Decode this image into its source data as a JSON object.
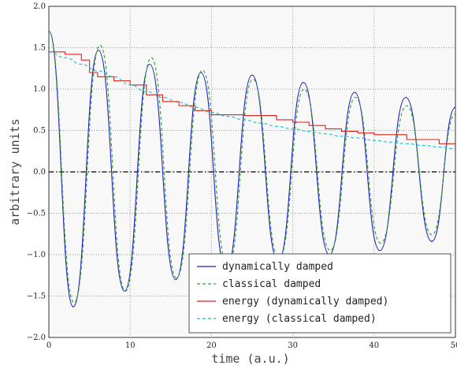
{
  "chart_data": {
    "type": "line",
    "xlabel": "time (a.u.)",
    "ylabel": "arbitrary units",
    "xlim": [
      0,
      50
    ],
    "ylim": [
      -2.0,
      2.0
    ],
    "xticks": [
      0,
      10,
      20,
      30,
      40,
      50
    ],
    "xtick_labels": [
      "0",
      "10",
      "20",
      "30",
      "40",
      "50"
    ],
    "yticks": [
      -2.0,
      -1.5,
      -1.0,
      -0.5,
      0.0,
      0.5,
      1.0,
      1.5,
      2.0
    ],
    "ytick_labels": [
      "−2.0",
      "−1.5",
      "−1.0",
      "−0.5",
      "0.0",
      "0.5",
      "1.0",
      "1.5",
      "2.0"
    ],
    "grid": true,
    "legend_position": "bottom-right",
    "reference_line": {
      "y": 0.0,
      "style": "dash-dot",
      "color": "#000000"
    },
    "series": [
      {
        "name": "dynamically damped",
        "color": "#1f1fbf",
        "style": "solid",
        "x": [
          0,
          3.0,
          6.1,
          9.3,
          12.4,
          15.6,
          18.7,
          21.8,
          25.0,
          28.2,
          31.3,
          34.5,
          37.6,
          40.7,
          43.9,
          47.1,
          50
        ],
        "y": [
          1.7,
          -1.63,
          1.47,
          -1.44,
          1.3,
          -1.3,
          1.2,
          -1.18,
          1.17,
          -1.08,
          1.08,
          -1.0,
          0.96,
          -0.95,
          0.9,
          -0.84,
          0.78
        ]
      },
      {
        "name": "classical damped",
        "color": "#2ca02c",
        "style": "dashed",
        "x": [
          0,
          3.1,
          6.3,
          9.4,
          12.6,
          15.7,
          18.9,
          22.0,
          25.1,
          28.3,
          31.4,
          34.6,
          37.7,
          40.8,
          44.0,
          47.1,
          50
        ],
        "y": [
          1.7,
          -1.58,
          1.53,
          -1.44,
          1.38,
          -1.28,
          1.23,
          -1.15,
          1.12,
          -1.05,
          1.0,
          -0.95,
          0.9,
          -0.86,
          0.8,
          -0.76,
          0.7
        ]
      },
      {
        "name": "energy (dynamically damped)",
        "color": "#e0201a",
        "style": "solid",
        "x": [
          0,
          2,
          4,
          5,
          6,
          8,
          10,
          12,
          14,
          16,
          18,
          20,
          24,
          28,
          30,
          32,
          34,
          36,
          38,
          40,
          44,
          48,
          50
        ],
        "y": [
          1.45,
          1.42,
          1.35,
          1.2,
          1.15,
          1.1,
          1.05,
          0.93,
          0.85,
          0.8,
          0.74,
          0.69,
          0.68,
          0.63,
          0.6,
          0.56,
          0.52,
          0.49,
          0.47,
          0.45,
          0.39,
          0.34,
          0.31
        ]
      },
      {
        "name": "energy (classical damped)",
        "color": "#17becf",
        "style": "dashed",
        "x": [
          0,
          2,
          4,
          6,
          8,
          10,
          12,
          14,
          16,
          18,
          20,
          22,
          24,
          26,
          28,
          30,
          32,
          34,
          36,
          38,
          40,
          42,
          44,
          46,
          48,
          50
        ],
        "y": [
          1.45,
          1.38,
          1.3,
          1.22,
          1.15,
          1.05,
          0.97,
          0.9,
          0.84,
          0.78,
          0.72,
          0.67,
          0.63,
          0.59,
          0.55,
          0.52,
          0.49,
          0.46,
          0.43,
          0.41,
          0.38,
          0.36,
          0.34,
          0.32,
          0.3,
          0.28
        ]
      }
    ]
  }
}
